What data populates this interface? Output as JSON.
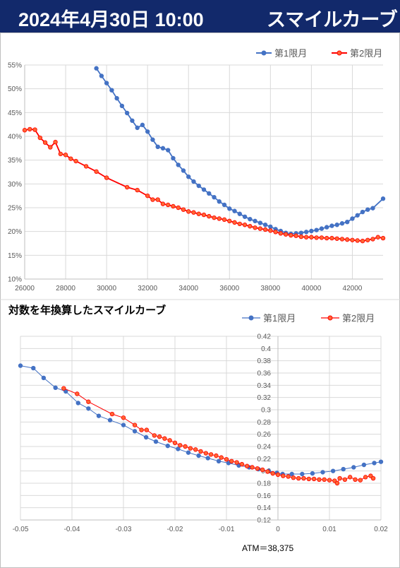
{
  "header": {
    "date": "2024年4月30日 10:00",
    "title": "スマイルカーブ"
  },
  "atm_note": "ATM＝38,375",
  "colors": {
    "series1": "#4472c4",
    "series2": "#ff0000",
    "series2_fill": "#ff6633",
    "header_bg": "#12296b"
  },
  "chart_data": [
    {
      "type": "line",
      "title": "",
      "xlabel": "",
      "ylabel": "",
      "xlim": [
        26000,
        43500
      ],
      "ylim": [
        0.1,
        0.55
      ],
      "xticks": [
        "26000",
        "28000",
        "30000",
        "32000",
        "34000",
        "36000",
        "38000",
        "40000",
        "42000"
      ],
      "yticks": [
        "10%",
        "15%",
        "20%",
        "25%",
        "30%",
        "35%",
        "40%",
        "45%",
        "50%",
        "55%"
      ],
      "grid": true,
      "legend": "top-right",
      "series": [
        {
          "name": "第1限月",
          "x": [
            29500,
            29750,
            30000,
            30250,
            30500,
            30750,
            31000,
            31250,
            31500,
            31750,
            32000,
            32250,
            32500,
            32750,
            33000,
            33250,
            33500,
            33750,
            34000,
            34250,
            34500,
            34750,
            35000,
            35250,
            35500,
            35750,
            36000,
            36250,
            36500,
            36750,
            37000,
            37250,
            37500,
            37750,
            38000,
            38250,
            38500,
            38750,
            39000,
            39250,
            39500,
            39750,
            40000,
            40250,
            40500,
            40750,
            41000,
            41250,
            41500,
            41750,
            42000,
            42250,
            42500,
            42750,
            43000,
            43500
          ],
          "y": [
            0.543,
            0.527,
            0.512,
            0.497,
            0.48,
            0.464,
            0.449,
            0.433,
            0.418,
            0.424,
            0.41,
            0.393,
            0.378,
            0.375,
            0.371,
            0.354,
            0.34,
            0.328,
            0.315,
            0.305,
            0.296,
            0.288,
            0.28,
            0.272,
            0.263,
            0.256,
            0.248,
            0.243,
            0.237,
            0.231,
            0.226,
            0.222,
            0.218,
            0.214,
            0.21,
            0.205,
            0.201,
            0.197,
            0.195,
            0.196,
            0.197,
            0.199,
            0.201,
            0.203,
            0.206,
            0.209,
            0.212,
            0.214,
            0.217,
            0.22,
            0.227,
            0.234,
            0.241,
            0.246,
            0.249,
            0.269
          ]
        },
        {
          "name": "第2限月",
          "x": [
            26000,
            26250,
            26500,
            26750,
            27000,
            27250,
            27500,
            27750,
            28000,
            28250,
            28500,
            29000,
            29500,
            30000,
            31000,
            31500,
            32000,
            32250,
            32500,
            32750,
            33000,
            33250,
            33500,
            33750,
            34000,
            34250,
            34500,
            34750,
            35000,
            35250,
            35500,
            35750,
            36000,
            36250,
            36500,
            36750,
            37000,
            37250,
            37500,
            37750,
            38000,
            38250,
            38500,
            38750,
            39000,
            39250,
            39500,
            39750,
            40000,
            40250,
            40500,
            40750,
            41000,
            41250,
            41500,
            41750,
            42000,
            42250,
            42500,
            42750,
            43000,
            43250,
            43500
          ],
          "y": [
            0.413,
            0.415,
            0.414,
            0.397,
            0.387,
            0.377,
            0.388,
            0.363,
            0.361,
            0.353,
            0.348,
            0.337,
            0.326,
            0.313,
            0.293,
            0.287,
            0.275,
            0.267,
            0.267,
            0.258,
            0.256,
            0.253,
            0.25,
            0.246,
            0.242,
            0.24,
            0.237,
            0.235,
            0.232,
            0.229,
            0.227,
            0.225,
            0.222,
            0.219,
            0.216,
            0.214,
            0.211,
            0.208,
            0.206,
            0.204,
            0.202,
            0.199,
            0.196,
            0.194,
            0.192,
            0.191,
            0.189,
            0.188,
            0.188,
            0.187,
            0.187,
            0.186,
            0.186,
            0.185,
            0.184,
            0.183,
            0.182,
            0.181,
            0.18,
            0.182,
            0.184,
            0.188,
            0.186
          ]
        }
      ]
    },
    {
      "type": "line",
      "title": "対数を年換算したスマイルカーブ",
      "xlabel": "",
      "ylabel": "",
      "xlim": [
        -0.05,
        0.02
      ],
      "ylim": [
        0.12,
        0.42
      ],
      "xticks": [
        "-0.05",
        "-0.04",
        "-0.03",
        "-0.02",
        "-0.01",
        "0",
        "0.01",
        "0.02"
      ],
      "yticks": [
        "0.12",
        "0.14",
        "0.16",
        "0.18",
        "0.2",
        "0.22",
        "0.24",
        "0.26",
        "0.28",
        "0.3",
        "0.32",
        "0.34",
        "0.36",
        "0.38",
        "0.4",
        "0.42"
      ],
      "grid": true,
      "legend": "top-right",
      "series": [
        {
          "name": "第1限月",
          "x": [
            -0.05,
            -0.0475,
            -0.0455,
            -0.0432,
            -0.0412,
            -0.0388,
            -0.0368,
            -0.0348,
            -0.0326,
            -0.03,
            -0.0278,
            -0.0256,
            -0.0237,
            -0.0214,
            -0.0194,
            -0.0174,
            -0.0154,
            -0.0136,
            -0.0115,
            -0.0096,
            -0.0076,
            -0.0056,
            -0.0038,
            -0.0018,
            -0.0002,
            0.0009,
            0.0027,
            0.0047,
            0.0067,
            0.0087,
            0.0107,
            0.0127,
            0.0147,
            0.0167,
            0.0187,
            0.02
          ],
          "y": [
            0.372,
            0.368,
            0.352,
            0.336,
            0.33,
            0.311,
            0.302,
            0.29,
            0.283,
            0.275,
            0.265,
            0.255,
            0.248,
            0.241,
            0.236,
            0.23,
            0.225,
            0.221,
            0.216,
            0.213,
            0.209,
            0.206,
            0.203,
            0.2,
            0.197,
            0.195,
            0.195,
            0.195,
            0.196,
            0.198,
            0.2,
            0.203,
            0.206,
            0.21,
            0.213,
            0.215
          ]
        },
        {
          "name": "第2限月",
          "x": [
            -0.0416,
            -0.039,
            -0.0368,
            -0.0322,
            -0.03,
            -0.0278,
            -0.0265,
            -0.0255,
            -0.024,
            -0.023,
            -0.022,
            -0.021,
            -0.02,
            -0.019,
            -0.018,
            -0.017,
            -0.016,
            -0.015,
            -0.014,
            -0.013,
            -0.012,
            -0.011,
            -0.01,
            -0.009,
            -0.008,
            -0.007,
            -0.006,
            -0.005,
            -0.004,
            -0.003,
            -0.002,
            -0.001,
            0.0,
            0.001,
            0.002,
            0.003,
            0.004,
            0.005,
            0.006,
            0.007,
            0.008,
            0.009,
            0.01,
            0.011,
            0.0115,
            0.012,
            0.013,
            0.014,
            0.015,
            0.016,
            0.017,
            0.018,
            0.0185
          ],
          "y": [
            0.335,
            0.326,
            0.313,
            0.293,
            0.287,
            0.275,
            0.267,
            0.267,
            0.258,
            0.256,
            0.253,
            0.25,
            0.246,
            0.242,
            0.24,
            0.237,
            0.235,
            0.232,
            0.229,
            0.227,
            0.225,
            0.222,
            0.219,
            0.216,
            0.214,
            0.211,
            0.208,
            0.206,
            0.204,
            0.202,
            0.199,
            0.196,
            0.194,
            0.192,
            0.191,
            0.189,
            0.188,
            0.188,
            0.187,
            0.187,
            0.186,
            0.186,
            0.185,
            0.184,
            0.18,
            0.188,
            0.186,
            0.19,
            0.186,
            0.185,
            0.19,
            0.192,
            0.188
          ]
        }
      ]
    }
  ]
}
